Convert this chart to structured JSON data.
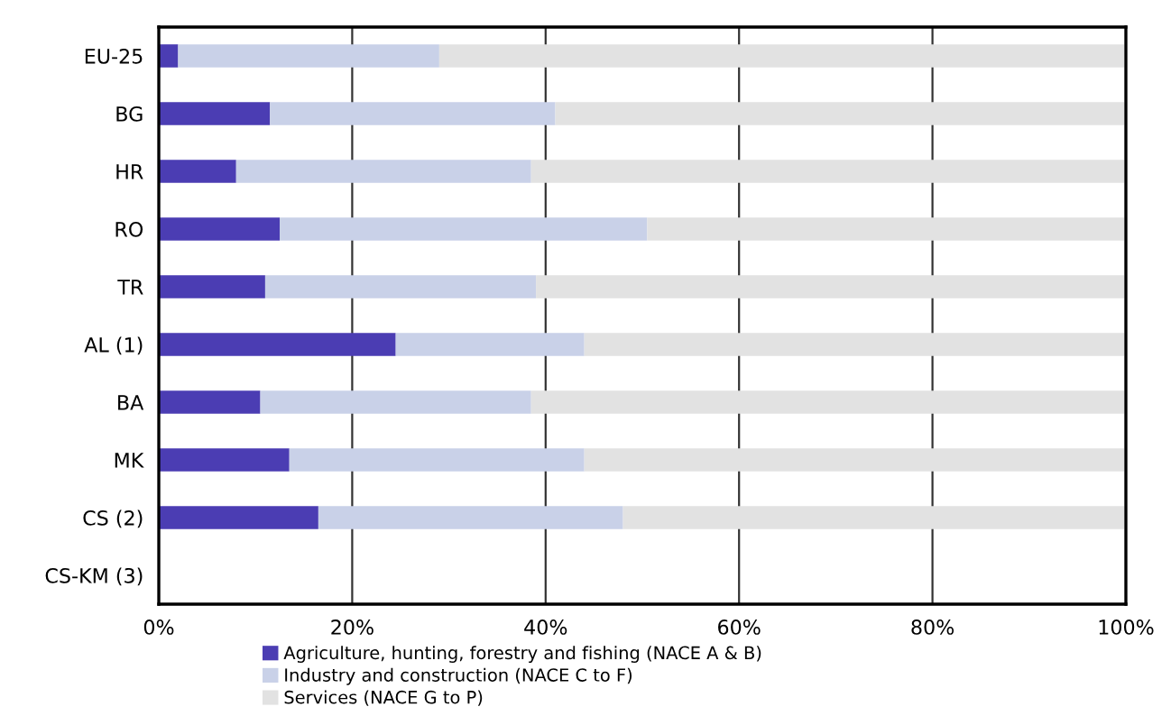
{
  "chart_data": {
    "type": "bar",
    "orientation": "horizontal",
    "stacked": true,
    "categories": [
      "EU-25",
      "BG",
      "HR",
      "RO",
      "TR",
      "AL (1)",
      "BA",
      "MK",
      "CS (2)",
      "CS-KM (3)"
    ],
    "series": [
      {
        "name": "Agriculture, hunting, forestry and fishing (NACE A & B)",
        "color": "#4b3db3",
        "values": [
          2,
          11.5,
          8,
          12.5,
          11,
          24.5,
          10.5,
          13.5,
          16.5,
          null
        ]
      },
      {
        "name": "Industry and construction (NACE C to F)",
        "color": "#c9d1e8",
        "values": [
          27,
          29.5,
          30.5,
          38,
          28,
          19.5,
          28,
          30.5,
          31.5,
          null
        ]
      },
      {
        "name": "Services (NACE G to P)",
        "color": "#e2e2e2",
        "values": [
          71,
          59,
          61.5,
          49.5,
          61,
          56,
          61.5,
          56,
          52,
          null
        ]
      }
    ],
    "xlim": [
      0,
      100
    ],
    "xticks": [
      {
        "value": 0,
        "label": "0%"
      },
      {
        "value": 20,
        "label": "20%"
      },
      {
        "value": 40,
        "label": "40%"
      },
      {
        "value": 60,
        "label": "60%"
      },
      {
        "value": 80,
        "label": "80%"
      },
      {
        "value": 100,
        "label": "100%"
      }
    ],
    "grid": "x",
    "legend": "bottom"
  }
}
